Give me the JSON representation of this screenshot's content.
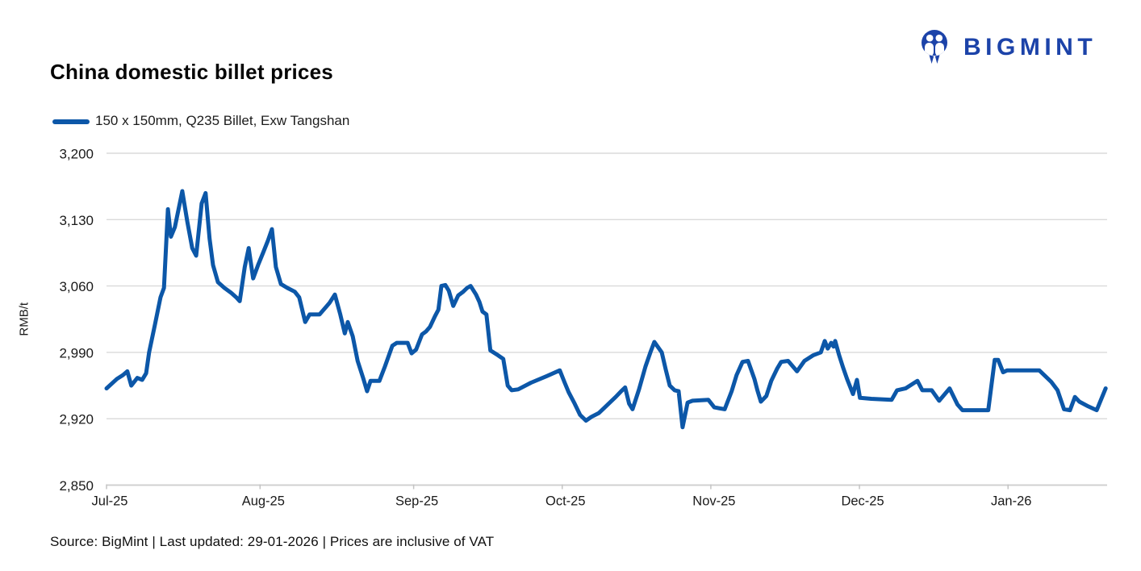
{
  "header": {
    "title": "China domestic billet prices",
    "brand": {
      "name": "BIGMINT",
      "color": "#1C43A9"
    }
  },
  "legend": {
    "label": "150 x 150mm, Q235 Billet, Exw Tangshan",
    "swatch_color": "#0C57A8"
  },
  "footer": {
    "text": "Source: BigMint | Last updated: 29-01-2026 | Prices are inclusive of VAT"
  },
  "chart_data": {
    "type": "line",
    "title": "China domestic billet prices",
    "xlabel": "",
    "ylabel": "RMB/t",
    "ylim": [
      2850,
      3200
    ],
    "y_ticks": [
      2850,
      2920,
      2990,
      3060,
      3130,
      3200
    ],
    "y_tick_labels": [
      "2,850",
      "2,920",
      "2,990",
      "3,060",
      "3,130",
      "3,200"
    ],
    "x_domain_days": [
      0,
      202
    ],
    "x_unit": "days since 01-07-2025 (estimated from plot)",
    "x_ticks": [
      {
        "label": "Jul-25",
        "day": 0
      },
      {
        "label": "Aug-25",
        "day": 31
      },
      {
        "label": "Sep-25",
        "day": 62
      },
      {
        "label": "Oct-25",
        "day": 92
      },
      {
        "label": "Nov-25",
        "day": 122
      },
      {
        "label": "Dec-25",
        "day": 152
      },
      {
        "label": "Jan-26",
        "day": 182
      }
    ],
    "grid": "horizontal",
    "legend_position": "top-left",
    "series": [
      {
        "name": "150 x 150mm, Q235 Billet, Exw Tangshan",
        "color": "#0C57A8",
        "points": [
          [
            0,
            2952
          ],
          [
            2.1,
            2962
          ],
          [
            3.3,
            2966
          ],
          [
            4.2,
            2970
          ],
          [
            5,
            2955
          ],
          [
            6.2,
            2963
          ],
          [
            7.2,
            2961
          ],
          [
            8,
            2968
          ],
          [
            8.6,
            2990
          ],
          [
            9.8,
            3020
          ],
          [
            10.9,
            3048
          ],
          [
            11.6,
            3058
          ],
          [
            12.4,
            3141
          ],
          [
            13,
            3112
          ],
          [
            13.8,
            3122
          ],
          [
            15.3,
            3160
          ],
          [
            16.3,
            3128
          ],
          [
            17.3,
            3100
          ],
          [
            18.1,
            3092
          ],
          [
            19.2,
            3147
          ],
          [
            20,
            3158
          ],
          [
            20.8,
            3110
          ],
          [
            21.5,
            3082
          ],
          [
            22.5,
            3064
          ],
          [
            23.8,
            3058
          ],
          [
            25.1,
            3053
          ],
          [
            26.2,
            3048
          ],
          [
            26.9,
            3044
          ],
          [
            27.9,
            3080
          ],
          [
            28.7,
            3100
          ],
          [
            29.6,
            3068
          ],
          [
            30.6,
            3082
          ],
          [
            31.6,
            3095
          ],
          [
            32.6,
            3108
          ],
          [
            33.4,
            3120
          ],
          [
            34.2,
            3080
          ],
          [
            35.2,
            3062
          ],
          [
            36.5,
            3058
          ],
          [
            38,
            3054
          ],
          [
            38.9,
            3048
          ],
          [
            40.1,
            3022
          ],
          [
            41,
            3030
          ],
          [
            43,
            3030
          ],
          [
            45,
            3042
          ],
          [
            46.1,
            3051
          ],
          [
            47.2,
            3030
          ],
          [
            48.1,
            3010
          ],
          [
            48.7,
            3022
          ],
          [
            49.7,
            3007
          ],
          [
            50.7,
            2981
          ],
          [
            51.8,
            2963
          ],
          [
            52.6,
            2949
          ],
          [
            53.3,
            2960
          ],
          [
            55.1,
            2960
          ],
          [
            56.2,
            2975
          ],
          [
            57.7,
            2997
          ],
          [
            58.6,
            3000
          ],
          [
            60.8,
            3000
          ],
          [
            61.6,
            2989
          ],
          [
            62.5,
            2993
          ],
          [
            63.7,
            3009
          ],
          [
            64.5,
            3012
          ],
          [
            65.3,
            3017
          ],
          [
            66.3,
            3028
          ],
          [
            67,
            3035
          ],
          [
            67.6,
            3060
          ],
          [
            68.4,
            3061
          ],
          [
            69.1,
            3055
          ],
          [
            70,
            3039
          ],
          [
            71,
            3050
          ],
          [
            72,
            3054
          ],
          [
            72.8,
            3058
          ],
          [
            73.5,
            3060
          ],
          [
            74.6,
            3051
          ],
          [
            75.3,
            3043
          ],
          [
            75.9,
            3033
          ],
          [
            76.7,
            3030
          ],
          [
            77.5,
            2992
          ],
          [
            79,
            2987
          ],
          [
            80.1,
            2983
          ],
          [
            81,
            2955
          ],
          [
            81.8,
            2950
          ],
          [
            83.1,
            2951
          ],
          [
            85.7,
            2958
          ],
          [
            88.9,
            2965
          ],
          [
            91.5,
            2971
          ],
          [
            92.5,
            2958
          ],
          [
            93.3,
            2948
          ],
          [
            94.5,
            2936
          ],
          [
            95.6,
            2924
          ],
          [
            96.8,
            2918
          ],
          [
            97.9,
            2922
          ],
          [
            99.4,
            2926
          ],
          [
            101.2,
            2935
          ],
          [
            102.8,
            2943
          ],
          [
            103.9,
            2949
          ],
          [
            104.7,
            2953
          ],
          [
            105.5,
            2936
          ],
          [
            106.2,
            2930
          ],
          [
            107.5,
            2951
          ],
          [
            108.8,
            2975
          ],
          [
            109.8,
            2990
          ],
          [
            110.6,
            3001
          ],
          [
            112.1,
            2990
          ],
          [
            112.9,
            2972
          ],
          [
            113.7,
            2955
          ],
          [
            114.7,
            2950
          ],
          [
            115.5,
            2949
          ],
          [
            116.3,
            2911
          ],
          [
            117.3,
            2937
          ],
          [
            118.3,
            2939
          ],
          [
            121.5,
            2940
          ],
          [
            122.7,
            2932
          ],
          [
            124.8,
            2930
          ],
          [
            126.2,
            2949
          ],
          [
            127.2,
            2966
          ],
          [
            128.4,
            2980
          ],
          [
            129.5,
            2981
          ],
          [
            130.8,
            2962
          ],
          [
            131.4,
            2950
          ],
          [
            132.1,
            2938
          ],
          [
            133.2,
            2944
          ],
          [
            134.2,
            2960
          ],
          [
            135.4,
            2973
          ],
          [
            136.2,
            2980
          ],
          [
            137.6,
            2981
          ],
          [
            139.4,
            2970
          ],
          [
            140.9,
            2981
          ],
          [
            142.7,
            2987
          ],
          [
            144.2,
            2990
          ],
          [
            145,
            3002
          ],
          [
            145.6,
            2994
          ],
          [
            146.3,
            3000
          ],
          [
            146.8,
            2996
          ],
          [
            147.1,
            3002
          ],
          [
            147.9,
            2987
          ],
          [
            148.7,
            2974
          ],
          [
            149.5,
            2962
          ],
          [
            150.7,
            2946
          ],
          [
            151.5,
            2961
          ],
          [
            152.1,
            2942
          ],
          [
            154.4,
            2941
          ],
          [
            158.5,
            2940
          ],
          [
            159.6,
            2950
          ],
          [
            161.3,
            2952
          ],
          [
            163.7,
            2960
          ],
          [
            164.7,
            2950
          ],
          [
            166.6,
            2950
          ],
          [
            168.1,
            2939
          ],
          [
            170.2,
            2952
          ],
          [
            171.8,
            2935
          ],
          [
            172.8,
            2929
          ],
          [
            178,
            2929
          ],
          [
            179.3,
            2982
          ],
          [
            180,
            2982
          ],
          [
            181,
            2969
          ],
          [
            181.8,
            2971
          ],
          [
            188.3,
            2971
          ],
          [
            190.7,
            2959
          ],
          [
            192,
            2950
          ],
          [
            193.3,
            2930
          ],
          [
            194.5,
            2929
          ],
          [
            195.5,
            2943
          ],
          [
            196.4,
            2938
          ],
          [
            198.2,
            2933
          ],
          [
            199.9,
            2929
          ],
          [
            201.7,
            2952
          ]
        ]
      }
    ]
  }
}
